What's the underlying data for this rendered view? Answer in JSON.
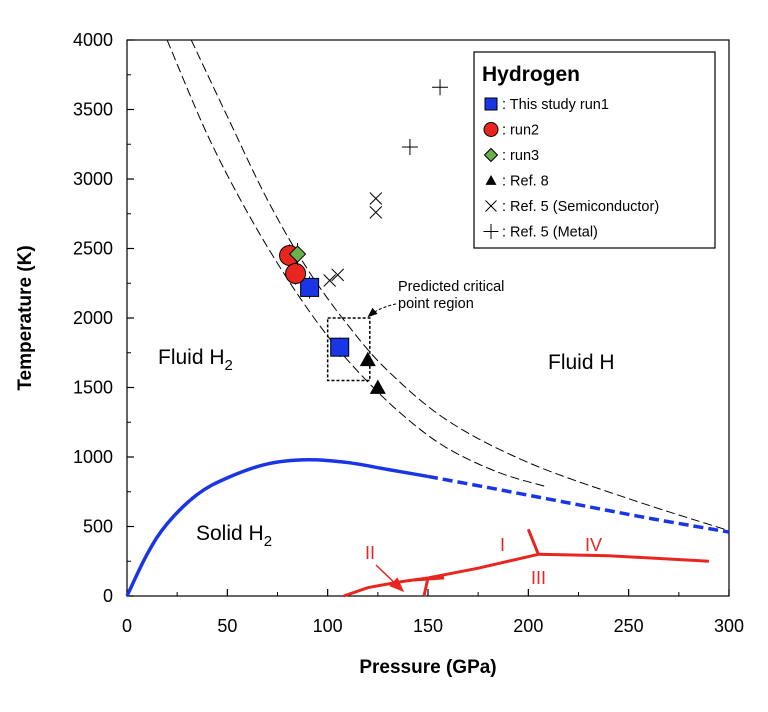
{
  "chart_data": {
    "type": "scatter",
    "title": "",
    "xlabel": "Pressure (GPa)",
    "ylabel": "Temperature (K)",
    "xlim": [
      0,
      300
    ],
    "ylim": [
      0,
      4000
    ],
    "x_ticks": [
      0,
      50,
      100,
      150,
      200,
      250,
      300
    ],
    "y_ticks": [
      0,
      500,
      1000,
      1500,
      2000,
      2500,
      3000,
      3500,
      4000
    ],
    "colors": {
      "run1": "#1a35e6",
      "run2": "#e8261f",
      "run3": "#6ab04c",
      "melting": "#1a35e6",
      "solid_phases": "#e8261f"
    },
    "legend": {
      "title": "Hydrogen",
      "entries": [
        {
          "marker": "square",
          "label": ": This study run1"
        },
        {
          "marker": "circle",
          "label": ": run2"
        },
        {
          "marker": "diamond",
          "label": ": run3"
        },
        {
          "marker": "triangle",
          "label": ": Ref. 8"
        },
        {
          "marker": "x",
          "label": ": Ref. 5 (Semiconductor)"
        },
        {
          "marker": "plus",
          "label": ": Ref. 5 (Metal)"
        }
      ]
    },
    "series": [
      {
        "name": "This study run1",
        "marker": "square",
        "points": [
          [
            91,
            2220
          ],
          [
            106,
            1790
          ]
        ],
        "yerr": [
          80,
          70
        ]
      },
      {
        "name": "run2",
        "marker": "circle",
        "points": [
          [
            81,
            2450
          ],
          [
            84,
            2320
          ]
        ],
        "yerr": [
          80,
          80
        ]
      },
      {
        "name": "run3",
        "marker": "diamond",
        "points": [
          [
            85,
            2460
          ]
        ],
        "yerr": [
          80
        ]
      },
      {
        "name": "Ref. 8",
        "marker": "triangle",
        "points": [
          [
            120,
            1700
          ],
          [
            125,
            1500
          ]
        ]
      },
      {
        "name": "Ref. 5 (Semiconductor)",
        "marker": "x",
        "points": [
          [
            101,
            2270
          ],
          [
            105,
            2310
          ],
          [
            124,
            2860
          ],
          [
            124,
            2760
          ]
        ]
      },
      {
        "name": "Ref. 5 (Metal)",
        "marker": "plus",
        "points": [
          [
            141,
            3230
          ],
          [
            156,
            3660
          ]
        ]
      }
    ],
    "dashed_boundaries": [
      {
        "name": "boundary-upper",
        "points": [
          [
            32,
            4000
          ],
          [
            50,
            3450
          ],
          [
            70,
            2850
          ],
          [
            90,
            2350
          ],
          [
            110,
            1950
          ],
          [
            130,
            1620
          ],
          [
            160,
            1260
          ],
          [
            200,
            960
          ],
          [
            250,
            700
          ],
          [
            300,
            470
          ]
        ]
      },
      {
        "name": "boundary-lower",
        "points": [
          [
            20,
            4000
          ],
          [
            40,
            3320
          ],
          [
            60,
            2760
          ],
          [
            80,
            2280
          ],
          [
            100,
            1870
          ],
          [
            120,
            1540
          ],
          [
            140,
            1270
          ],
          [
            160,
            1060
          ],
          [
            185,
            890
          ],
          [
            208,
            790
          ]
        ]
      }
    ],
    "melting_curve": {
      "solid": [
        [
          0,
          0
        ],
        [
          10,
          300
        ],
        [
          20,
          520
        ],
        [
          35,
          730
        ],
        [
          50,
          850
        ],
        [
          70,
          950
        ],
        [
          90,
          980
        ],
        [
          110,
          960
        ],
        [
          130,
          910
        ],
        [
          150,
          860
        ]
      ],
      "dashed": [
        [
          150,
          860
        ],
        [
          180,
          780
        ],
        [
          220,
          670
        ],
        [
          260,
          560
        ],
        [
          300,
          460
        ]
      ]
    },
    "solid_phase_lines": [
      {
        "name": "II-III boundary",
        "points": [
          [
            108,
            0
          ],
          [
            120,
            60
          ],
          [
            135,
            100
          ],
          [
            150,
            130
          ],
          [
            175,
            200
          ],
          [
            205,
            300
          ]
        ]
      },
      {
        "name": "III-IV boundary",
        "points": [
          [
            205,
            300
          ],
          [
            240,
            290
          ],
          [
            290,
            250
          ]
        ]
      },
      {
        "name": "I-III boundary",
        "points": [
          [
            205,
            300
          ],
          [
            200,
            480
          ]
        ]
      },
      {
        "name": "I-II boundary",
        "points": [
          [
            150,
            130
          ],
          [
            148,
            0
          ]
        ]
      },
      {
        "name": "II-III tick",
        "points": [
          [
            143,
            115
          ],
          [
            158,
            130
          ]
        ]
      }
    ],
    "critical_region_box": {
      "x": [
        100,
        121
      ],
      "y": [
        1550,
        2000
      ]
    },
    "annotations": {
      "fluid_h2": "Fluid H",
      "fluid_h2_sub": "2",
      "fluid_h": "Fluid H",
      "solid_h2": "Solid H",
      "solid_h2_sub": "2",
      "critical_line1": "Predicted critical",
      "critical_line2": "point region",
      "phase_I": "I",
      "phase_II": "II",
      "phase_III": "III",
      "phase_IV": "IV"
    }
  }
}
